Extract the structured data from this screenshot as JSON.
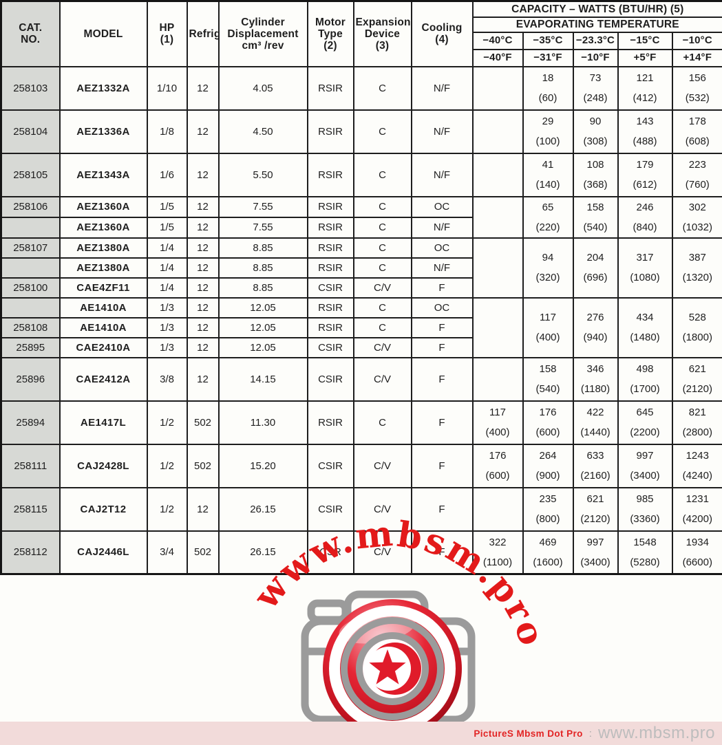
{
  "table": {
    "header": {
      "cat": "CAT.\nNO.",
      "model": "MODEL",
      "hp": "HP\n(1)",
      "refrig": "Refrig.",
      "disp": "Cylinder\nDisplacement\ncm³ /rev",
      "motor": "Motor\nType\n(2)",
      "expansion": "Expansion\nDevice\n(3)",
      "cooling": "Cooling\n(4)",
      "capacity_title": "CAPACITY – WATTS (BTU/HR) (5)",
      "evap_title": "EVAPORATING TEMPERATURE",
      "temps_c": [
        "−40°C",
        "−35°C",
        "−23.3°C",
        "−15°C",
        "−10°C"
      ],
      "temps_f": [
        "−40°F",
        "−31°F",
        "−10°F",
        "+5°F",
        "+14°F"
      ]
    },
    "rows": [
      {
        "cat": "258103",
        "model": "AEZ1332A",
        "hp": "1/10",
        "refrig": "12",
        "disp": "4.05",
        "motor": "RSIR",
        "expansion": "C",
        "cooling": "N/F",
        "cap": {
          "span": 1,
          "cells": [
            "",
            "18\n(60)",
            "73\n(248)",
            "121\n(412)",
            "156\n(532)"
          ]
        }
      },
      {
        "cat": "258104",
        "model": "AEZ1336A",
        "hp": "1/8",
        "refrig": "12",
        "disp": "4.50",
        "motor": "RSIR",
        "expansion": "C",
        "cooling": "N/F",
        "cap": {
          "span": 1,
          "cells": [
            "",
            "29\n(100)",
            "90\n(308)",
            "143\n(488)",
            "178\n(608)"
          ]
        }
      },
      {
        "cat": "258105",
        "model": "AEZ1343A",
        "hp": "1/6",
        "refrig": "12",
        "disp": "5.50",
        "motor": "RSIR",
        "expansion": "C",
        "cooling": "N/F",
        "cap": {
          "span": 1,
          "cells": [
            "",
            "41\n(140)",
            "108\n(368)",
            "179\n(612)",
            "223\n(760)"
          ]
        }
      },
      {
        "cat": "258106",
        "model": "AEZ1360A",
        "hp": "1/5",
        "refrig": "12",
        "disp": "7.55",
        "motor": "RSIR",
        "expansion": "C",
        "cooling": "OC",
        "cap": {
          "span": 2,
          "cells": [
            "",
            "65\n(220)",
            "158\n(540)",
            "246\n(840)",
            "302\n(1032)"
          ]
        }
      },
      {
        "cat": "",
        "model": "AEZ1360A",
        "hp": "1/5",
        "refrig": "12",
        "disp": "7.55",
        "motor": "RSIR",
        "expansion": "C",
        "cooling": "N/F",
        "cap": "merged"
      },
      {
        "cat": "258107",
        "model": "AEZ1380A",
        "hp": "1/4",
        "refrig": "12",
        "disp": "8.85",
        "motor": "RSIR",
        "expansion": "C",
        "cooling": "OC",
        "cap": {
          "span": 3,
          "cells": [
            "",
            "94\n(320)",
            "204\n(696)",
            "317\n(1080)",
            "387\n(1320)"
          ]
        }
      },
      {
        "cat": "",
        "model": "AEZ1380A",
        "hp": "1/4",
        "refrig": "12",
        "disp": "8.85",
        "motor": "RSIR",
        "expansion": "C",
        "cooling": "N/F",
        "cap": "merged"
      },
      {
        "cat": "258100",
        "model": "CAE4ZF11",
        "hp": "1/4",
        "refrig": "12",
        "disp": "8.85",
        "motor": "CSIR",
        "expansion": "C/V",
        "cooling": "F",
        "cap": "merged"
      },
      {
        "cat": "",
        "model": "AE1410A",
        "hp": "1/3",
        "refrig": "12",
        "disp": "12.05",
        "motor": "RSIR",
        "expansion": "C",
        "cooling": "OC",
        "cap": {
          "span": 3,
          "cells": [
            "",
            "117\n(400)",
            "276\n(940)",
            "434\n(1480)",
            "528\n(1800)"
          ]
        }
      },
      {
        "cat": "258108",
        "model": "AE1410A",
        "hp": "1/3",
        "refrig": "12",
        "disp": "12.05",
        "motor": "RSIR",
        "expansion": "C",
        "cooling": "F",
        "cap": "merged"
      },
      {
        "cat": "25895",
        "model": "CAE2410A",
        "hp": "1/3",
        "refrig": "12",
        "disp": "12.05",
        "motor": "CSIR",
        "expansion": "C/V",
        "cooling": "F",
        "cap": "merged"
      },
      {
        "cat": "25896",
        "model": "CAE2412A",
        "hp": "3/8",
        "refrig": "12",
        "disp": "14.15",
        "motor": "CSIR",
        "expansion": "C/V",
        "cooling": "F",
        "cap": {
          "span": 1,
          "cells": [
            "",
            "158\n(540)",
            "346\n(1180)",
            "498\n(1700)",
            "621\n(2120)"
          ]
        }
      },
      {
        "cat": "25894",
        "model": "AE1417L",
        "hp": "1/2",
        "refrig": "502",
        "disp": "11.30",
        "motor": "RSIR",
        "expansion": "C",
        "cooling": "F",
        "cap": {
          "span": 1,
          "cells": [
            "117\n(400)",
            "176\n(600)",
            "422\n(1440)",
            "645\n(2200)",
            "821\n(2800)"
          ]
        }
      },
      {
        "cat": "258111",
        "model": "CAJ2428L",
        "hp": "1/2",
        "refrig": "502",
        "disp": "15.20",
        "motor": "CSIR",
        "expansion": "C/V",
        "cooling": "F",
        "cap": {
          "span": 1,
          "cells": [
            "176\n(600)",
            "264\n(900)",
            "633\n(2160)",
            "997\n(3400)",
            "1243\n(4240)"
          ]
        }
      },
      {
        "cat": "258115",
        "model": "CAJ2T12",
        "hp": "1/2",
        "refrig": "12",
        "disp": "26.15",
        "motor": "CSIR",
        "expansion": "C/V",
        "cooling": "F",
        "cap": {
          "span": 1,
          "cells": [
            "",
            "235\n(800)",
            "621\n(2120)",
            "985\n(3360)",
            "1231\n(4200)"
          ]
        }
      },
      {
        "cat": "258112",
        "model": "CAJ2446L",
        "hp": "3/4",
        "refrig": "502",
        "disp": "26.15",
        "motor": "CSR",
        "expansion": "C/V",
        "cooling": "F",
        "cap": {
          "span": 1,
          "cells": [
            "322\n(1100)",
            "469\n(1600)",
            "997\n(3400)",
            "1548\n(5280)",
            "1934\n(6600)"
          ]
        }
      }
    ]
  },
  "watermark": {
    "arc_text": "www.mbsm.pro",
    "camera_icon": "camera-icon",
    "colors": {
      "watermark_red": "#e31a1a",
      "camera_gray": "#9b9b9b",
      "ball_red": "#d81626"
    }
  },
  "footer": {
    "brand": "PictureS Mbsm Dot Pro",
    "separator": ":",
    "site": "www.mbsm.pro",
    "bar_color": "#f2dbda",
    "brand_color": "#e22424"
  }
}
